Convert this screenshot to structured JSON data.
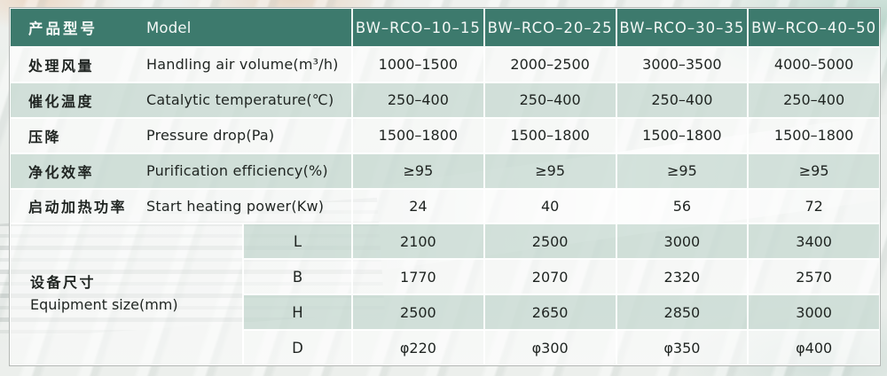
{
  "colors": {
    "header_bg": "#3d7a6d",
    "header_text": "#f4f8f6",
    "row_green": "#cadcd4",
    "row_white": "#fdfefd",
    "text_dark": "#1f2421",
    "table_border": "#b2b6b3"
  },
  "table": {
    "header": {
      "label_cn": "产品型号",
      "label_en": "Model",
      "models": [
        "BW–RCO–10–15",
        "BW–RCO–20–25",
        "BW–RCO–30–35",
        "BW–RCO–40–50"
      ]
    },
    "rows": [
      {
        "cn": "处理风量",
        "en": "Handling air volume(m³/h)",
        "values": [
          "1000–1500",
          "2000–2500",
          "3000–3500",
          "4000–5000"
        ]
      },
      {
        "cn": "催化温度",
        "en": "Catalytic temperature(℃)",
        "values": [
          "250–400",
          "250–400",
          "250–400",
          "250–400"
        ]
      },
      {
        "cn": "压降",
        "en": "Pressure drop(Pa)",
        "values": [
          "1500–1800",
          "1500–1800",
          "1500–1800",
          "1500–1800"
        ]
      },
      {
        "cn": "净化效率",
        "en": "Purification efficiency(%)",
        "values": [
          "≥95",
          "≥95",
          "≥95",
          "≥95"
        ]
      },
      {
        "cn": "启动加热功率",
        "en": "Start heating power(Kw)",
        "values": [
          "24",
          "40",
          "56",
          "72"
        ]
      }
    ],
    "equipment": {
      "label_cn": "设备尺寸",
      "label_en": "Equipment size(mm)",
      "dims": [
        {
          "dim": "L",
          "values": [
            "2100",
            "2500",
            "3000",
            "3400"
          ]
        },
        {
          "dim": "B",
          "values": [
            "1770",
            "2070",
            "2320",
            "2570"
          ]
        },
        {
          "dim": "H",
          "values": [
            "2500",
            "2650",
            "2850",
            "3000"
          ]
        },
        {
          "dim": "D",
          "values": [
            "φ220",
            "φ300",
            "φ350",
            "φ400"
          ]
        }
      ]
    }
  }
}
